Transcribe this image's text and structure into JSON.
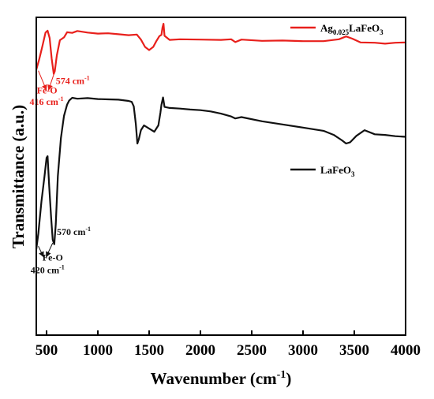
{
  "chart_data": {
    "type": "line",
    "title": "",
    "xlabel": "Wavenumber (cm",
    "xlabel_sup": "-1",
    "xlabel_close": ")",
    "ylabel": "Transmittance (a.u.)",
    "xlim": [
      400,
      4000
    ],
    "xticks": [
      500,
      1000,
      1500,
      2000,
      2500,
      3000,
      3500,
      4000
    ],
    "xtick_labels": [
      "500",
      "1000",
      "1500",
      "2000",
      "2500",
      "3000",
      "3500",
      "4000"
    ],
    "yticks": false,
    "grid": false,
    "series": [
      {
        "key": "ag",
        "color": "#e8201c",
        "legend": {
          "pre": "Ag",
          "sub": "0.025",
          "mid": "LaFeO",
          "sub2": "3"
        },
        "x": [
          400,
          430,
          460,
          490,
          510,
          530,
          550,
          570,
          580,
          600,
          630,
          670,
          700,
          750,
          800,
          900,
          1000,
          1100,
          1200,
          1300,
          1380,
          1420,
          1460,
          1500,
          1540,
          1570,
          1600,
          1620,
          1630,
          1640,
          1650,
          1700,
          1800,
          2000,
          2200,
          2300,
          2340,
          2400,
          2600,
          2800,
          3000,
          3200,
          3350,
          3420,
          3480,
          3560,
          3700,
          3800,
          3900,
          4000
        ],
        "y": [
          0.835,
          0.87,
          0.91,
          0.952,
          0.958,
          0.935,
          0.87,
          0.822,
          0.83,
          0.88,
          0.928,
          0.937,
          0.953,
          0.951,
          0.957,
          0.952,
          0.949,
          0.95,
          0.947,
          0.944,
          0.946,
          0.93,
          0.907,
          0.897,
          0.907,
          0.925,
          0.941,
          0.945,
          0.968,
          0.98,
          0.942,
          0.929,
          0.931,
          0.93,
          0.929,
          0.931,
          0.922,
          0.93,
          0.926,
          0.927,
          0.925,
          0.925,
          0.931,
          0.94,
          0.933,
          0.921,
          0.92,
          0.917,
          0.92,
          0.921
        ]
      },
      {
        "key": "la",
        "color": "#111111",
        "legend": {
          "pre": "",
          "sub": "",
          "mid": "LaFeO",
          "sub2": "3"
        },
        "x": [
          400,
          420,
          450,
          480,
          500,
          510,
          525,
          545,
          560,
          575,
          590,
          610,
          640,
          670,
          700,
          720,
          750,
          800,
          900,
          1000,
          1100,
          1200,
          1300,
          1330,
          1350,
          1370,
          1385,
          1400,
          1420,
          1450,
          1500,
          1550,
          1590,
          1610,
          1620,
          1635,
          1650,
          1700,
          1800,
          1900,
          2000,
          2100,
          2200,
          2300,
          2340,
          2400,
          2600,
          2800,
          3000,
          3200,
          3300,
          3380,
          3420,
          3460,
          3520,
          3600,
          3700,
          3800,
          3900,
          4000
        ],
        "y": [
          0.27,
          0.32,
          0.42,
          0.5,
          0.558,
          0.563,
          0.47,
          0.37,
          0.3,
          0.286,
          0.35,
          0.5,
          0.62,
          0.69,
          0.725,
          0.738,
          0.747,
          0.744,
          0.746,
          0.743,
          0.742,
          0.741,
          0.737,
          0.734,
          0.72,
          0.665,
          0.603,
          0.617,
          0.645,
          0.66,
          0.65,
          0.64,
          0.66,
          0.7,
          0.725,
          0.748,
          0.718,
          0.715,
          0.713,
          0.71,
          0.708,
          0.704,
          0.697,
          0.688,
          0.682,
          0.686,
          0.673,
          0.663,
          0.653,
          0.643,
          0.63,
          0.613,
          0.603,
          0.607,
          0.627,
          0.645,
          0.632,
          0.63,
          0.626,
          0.624
        ]
      }
    ],
    "annotations": [
      {
        "text": "574 cm",
        "sup": "-1",
        "color": "#e8201c",
        "x": 590,
        "y": 0.79,
        "anchor": "start"
      },
      {
        "text": "Fe-O",
        "sup": "",
        "color": "#e8201c",
        "x": 505,
        "y": 0.76,
        "anchor": "middle"
      },
      {
        "text": "416 cm",
        "sup": "-1",
        "color": "#e8201c",
        "x": 500,
        "y": 0.725,
        "anchor": "middle"
      },
      {
        "text": "570 cm",
        "sup": "-1",
        "color": "#111111",
        "x": 600,
        "y": 0.315,
        "anchor": "start"
      },
      {
        "text": "Fe-O",
        "sup": "",
        "color": "#111111",
        "x": 460,
        "y": 0.235,
        "anchor": "start"
      },
      {
        "text": "420 cm",
        "sup": "-1",
        "color": "#111111",
        "x": 510,
        "y": 0.195,
        "anchor": "middle"
      }
    ],
    "arrows": [
      {
        "color": "#e8201c",
        "from": [
          420,
          0.832
        ],
        "to": [
          500,
          0.77
        ]
      },
      {
        "color": "#e8201c",
        "from": [
          570,
          0.82
        ],
        "to": [
          518,
          0.77
        ]
      },
      {
        "color": "#111111",
        "from": [
          420,
          0.28
        ],
        "to": [
          472,
          0.245
        ]
      },
      {
        "color": "#111111",
        "from": [
          560,
          0.29
        ],
        "to": [
          495,
          0.245
        ]
      }
    ]
  }
}
